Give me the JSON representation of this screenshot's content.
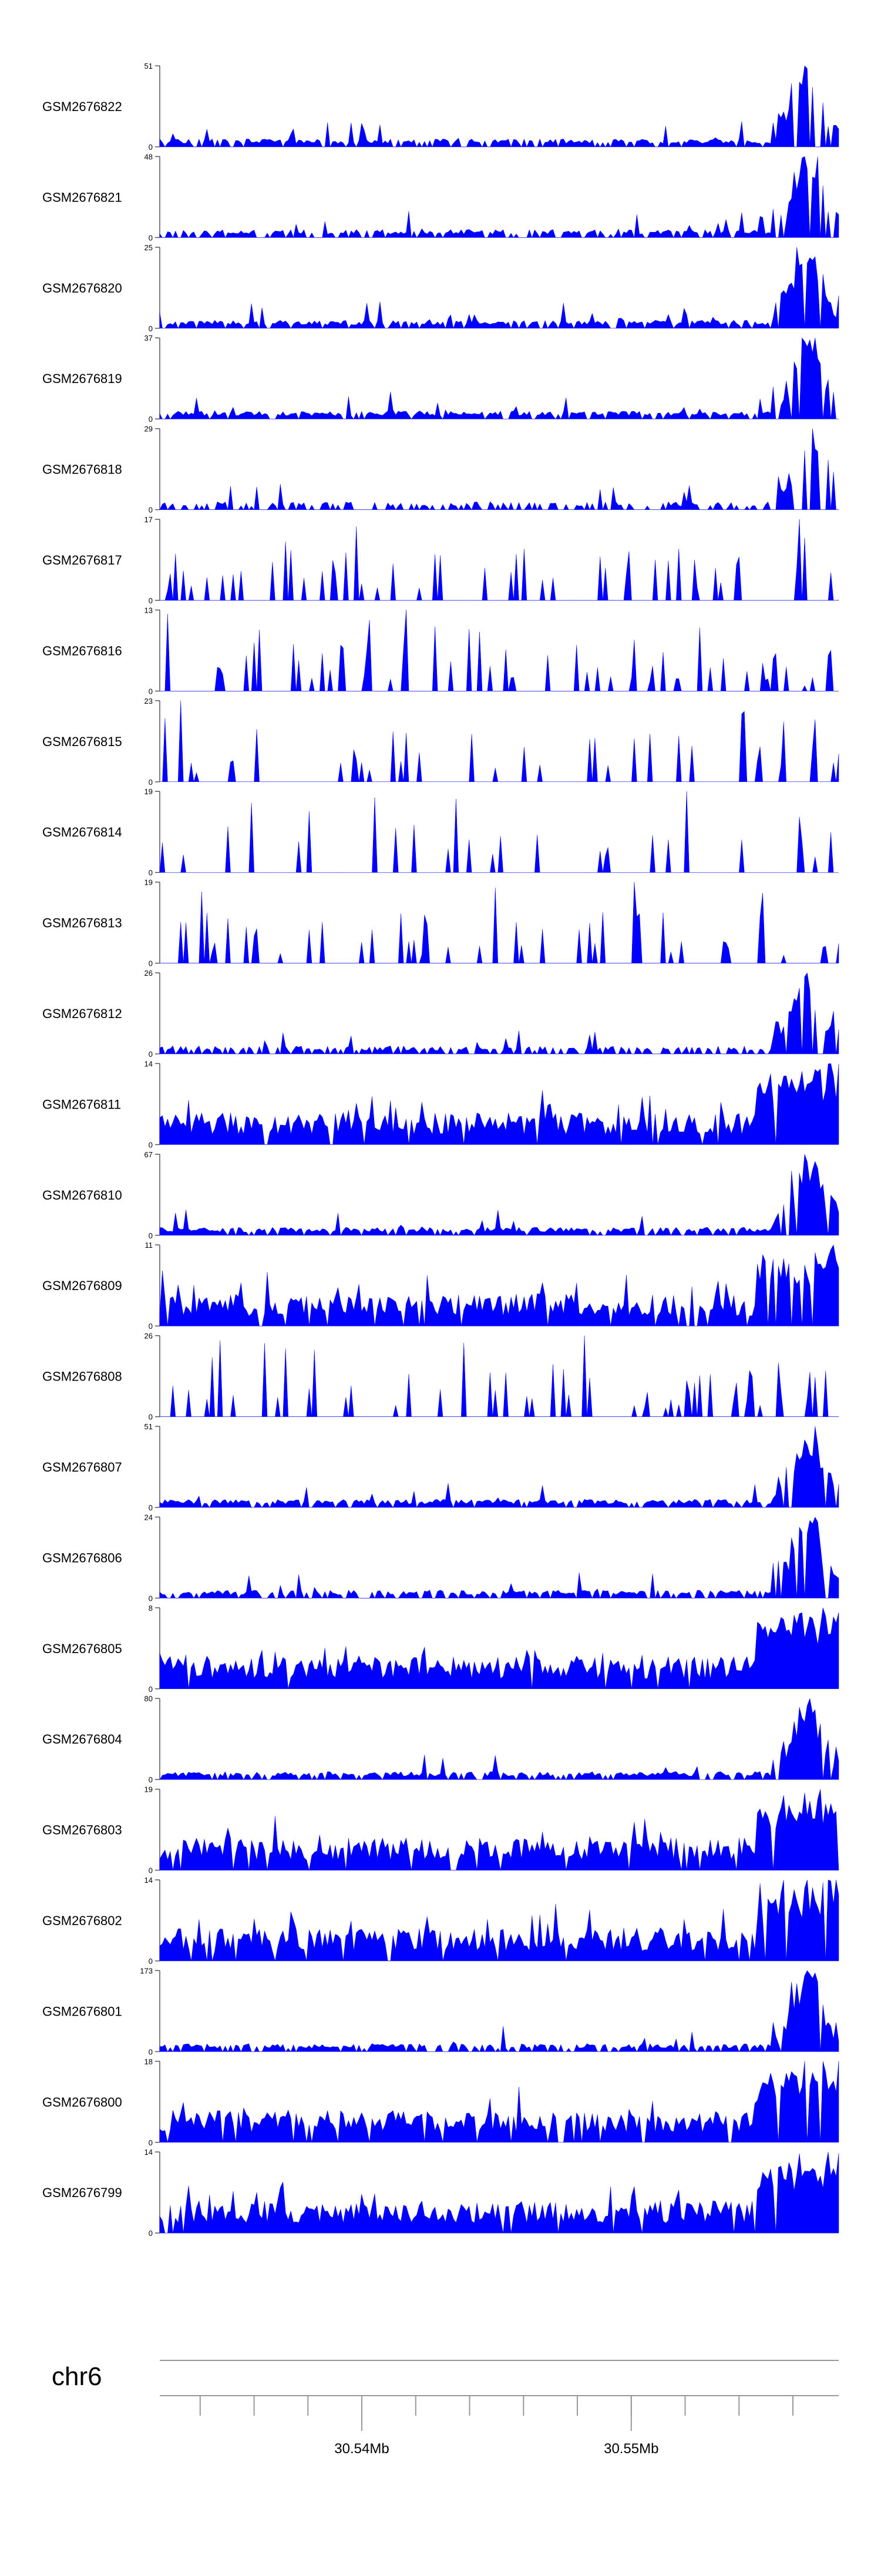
{
  "chart_data": {
    "type": "area",
    "title": "",
    "chromosome": "chr6",
    "x_unit": "Mb",
    "xlim": [
      30.5325,
      30.5577
    ],
    "x_tick_labels": [
      {
        "position": 30.54,
        "label": "30.54Mb"
      },
      {
        "position": 30.55,
        "label": "30.55Mb"
      }
    ],
    "minor_tick_interval": 0.002,
    "colors": {
      "fill": "#0000ff",
      "axis": "#555555",
      "text": "#000000"
    },
    "series": [
      {
        "name": "GSM2676822",
        "ymax": 51,
        "ymin": 0,
        "profile": "hump",
        "peak": 51,
        "sparsity": 0.25,
        "seed": 22
      },
      {
        "name": "GSM2676821",
        "ymax": 48,
        "ymin": 0,
        "profile": "hump",
        "peak": 48,
        "sparsity": 0.3,
        "seed": 21
      },
      {
        "name": "GSM2676820",
        "ymax": 25,
        "ymin": 0,
        "profile": "hump",
        "peak": 25,
        "sparsity": 0.2,
        "seed": 20
      },
      {
        "name": "GSM2676819",
        "ymax": 37,
        "ymin": 0,
        "profile": "hump",
        "peak": 37,
        "sparsity": 0.2,
        "seed": 19
      },
      {
        "name": "GSM2676818",
        "ymax": 29,
        "ymin": 0,
        "profile": "hump",
        "peak": 29,
        "sparsity": 0.55,
        "seed": 18
      },
      {
        "name": "GSM2676817",
        "ymax": 17,
        "ymin": 0,
        "profile": "sparse",
        "peak": 17,
        "sparsity": 0.65,
        "seed": 17
      },
      {
        "name": "GSM2676816",
        "ymax": 13,
        "ymin": 0,
        "profile": "sparse",
        "peak": 13,
        "sparsity": 0.6,
        "seed": 16
      },
      {
        "name": "GSM2676815",
        "ymax": 23,
        "ymin": 0,
        "profile": "sparse",
        "peak": 23,
        "sparsity": 0.7,
        "seed": 15
      },
      {
        "name": "GSM2676814",
        "ymax": 19,
        "ymin": 0,
        "profile": "sparse",
        "peak": 19,
        "sparsity": 0.8,
        "seed": 14
      },
      {
        "name": "GSM2676813",
        "ymax": 19,
        "ymin": 0,
        "profile": "sparse",
        "peak": 19,
        "sparsity": 0.7,
        "seed": 13
      },
      {
        "name": "GSM2676812",
        "ymax": 26,
        "ymin": 0,
        "profile": "hump",
        "peak": 26,
        "sparsity": 0.35,
        "seed": 12
      },
      {
        "name": "GSM2676811",
        "ymax": 14,
        "ymin": 0,
        "profile": "dense",
        "peak": 14,
        "sparsity": 0.05,
        "seed": 11
      },
      {
        "name": "GSM2676810",
        "ymax": 67,
        "ymin": 0,
        "profile": "hump",
        "peak": 67,
        "sparsity": 0.15,
        "seed": 10
      },
      {
        "name": "GSM2676809",
        "ymax": 11,
        "ymin": 0,
        "profile": "dense",
        "peak": 11,
        "sparsity": 0.1,
        "seed": 9
      },
      {
        "name": "GSM2676808",
        "ymax": 26,
        "ymin": 0,
        "profile": "sparse",
        "peak": 26,
        "sparsity": 0.6,
        "seed": 8
      },
      {
        "name": "GSM2676807",
        "ymax": 51,
        "ymin": 0,
        "profile": "hump",
        "peak": 51,
        "sparsity": 0.15,
        "seed": 7
      },
      {
        "name": "GSM2676806",
        "ymax": 24,
        "ymin": 0,
        "profile": "hump",
        "peak": 24,
        "sparsity": 0.25,
        "seed": 6
      },
      {
        "name": "GSM2676805",
        "ymax": 8,
        "ymin": 0,
        "profile": "dense",
        "peak": 8,
        "sparsity": 0.03,
        "seed": 5
      },
      {
        "name": "GSM2676804",
        "ymax": 80,
        "ymin": 0,
        "profile": "hump",
        "peak": 80,
        "sparsity": 0.15,
        "seed": 4
      },
      {
        "name": "GSM2676803",
        "ymax": 19,
        "ymin": 0,
        "profile": "dense",
        "peak": 19,
        "sparsity": 0.1,
        "seed": 3
      },
      {
        "name": "GSM2676802",
        "ymax": 14,
        "ymin": 0,
        "profile": "dense",
        "peak": 14,
        "sparsity": 0.08,
        "seed": 2
      },
      {
        "name": "GSM2676801",
        "ymax": 173,
        "ymin": 0,
        "profile": "hump",
        "peak": 173,
        "sparsity": 0.3,
        "seed": 1
      },
      {
        "name": "GSM2676800",
        "ymax": 18,
        "ymin": 0,
        "profile": "dense",
        "peak": 18,
        "sparsity": 0.08,
        "seed": 100
      },
      {
        "name": "GSM2676799",
        "ymax": 14,
        "ymin": 0,
        "profile": "dense",
        "peak": 14,
        "sparsity": 0.08,
        "seed": 99
      }
    ]
  }
}
